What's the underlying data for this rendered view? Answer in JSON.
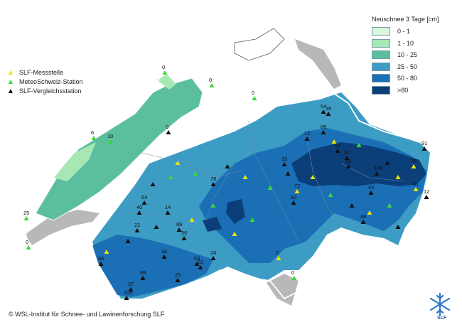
{
  "legend": {
    "title": "Neuschnee 3 Tage [cm]",
    "classes": [
      {
        "label": "0 - 1",
        "color": "#d9f7dd"
      },
      {
        "label": "1 - 10",
        "color": "#a6e8b4"
      },
      {
        "label": "10 - 25",
        "color": "#5bbf9f"
      },
      {
        "label": "25 - 50",
        "color": "#3d9cc4"
      },
      {
        "label": "50 - 80",
        "color": "#1a6fb5"
      },
      {
        "label": ">80",
        "color": "#0b3f7a"
      }
    ]
  },
  "station_types": [
    {
      "label": "SLF-Messstelle",
      "color": "#f0e400"
    },
    {
      "label": "MeteoSchweiz-Station",
      "color": "#3fd63f"
    },
    {
      "label": "SLF-Vergleichsstation",
      "color": "#111111"
    }
  ],
  "station_values": [
    "0",
    "0",
    "0",
    "0",
    "6",
    "10",
    "25",
    "0",
    "15",
    "54",
    "12",
    "36",
    "88",
    "82",
    "62",
    "50",
    "91",
    "43",
    "106",
    "12",
    "48",
    "14",
    "64",
    "40",
    "22",
    "89",
    "56",
    "53",
    "88",
    "24",
    "52",
    "65",
    "36",
    "2",
    "0",
    "100",
    "37",
    "78",
    "25",
    "60",
    "72",
    "78",
    "61"
  ],
  "credit": "© WSL-Institut für Schnee- und Lawinenforschung SLF",
  "logo_text": "SLF"
}
